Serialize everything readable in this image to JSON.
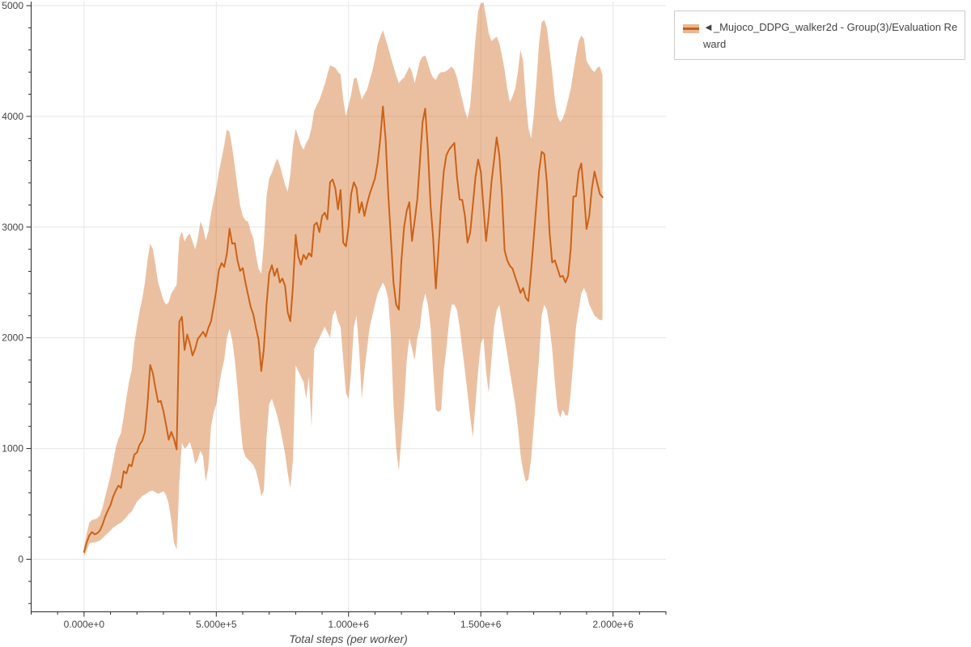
{
  "legend": {
    "label": "◄_Mujoco_DDPG_walker2d - Group(3)/Evaluation Reward"
  },
  "chart_data": {
    "type": "line",
    "title": "",
    "xlabel": "Total steps (per worker)",
    "ylabel": "",
    "grid": true,
    "legend_position": "top-right-outside",
    "xlim": [
      -200000,
      2200000
    ],
    "ylim": [
      -475,
      5000
    ],
    "x_major_ticks": [
      0,
      500000,
      1000000,
      1500000,
      2000000
    ],
    "x_tick_labels": [
      "0.000e+0",
      "5.000e+5",
      "1.000e+6",
      "1.500e+6",
      "2.000e+6"
    ],
    "x_minor_step": 100000,
    "y_major_ticks": [
      0,
      1000,
      2000,
      3000,
      4000,
      5000
    ],
    "y_tick_labels": [
      "0",
      "1000",
      "2000",
      "3000",
      "4000",
      "5000"
    ],
    "y_minor_step": 200,
    "colors": {
      "line": "#cc6216",
      "band": "rgba(205,98,20,0.40)",
      "grid": "#e6e6e6",
      "axis": "#2a2a2a",
      "tick_label": "#444444",
      "axis_title": "#4a4a4a",
      "legend_border": "#cccccc",
      "swatch_band": "rgba(205,98,20,0.45)",
      "swatch_line": "#cb6015"
    },
    "series": [
      {
        "name": "◄_Mujoco_DDPG_walker2d - Group(3)/Evaluation Reward",
        "x_start": 0,
        "x_step": 10000,
        "n_points": 197,
        "mean": [
          65,
          150,
          215,
          245,
          225,
          235,
          260,
          315,
          385,
          440,
          490,
          565,
          620,
          665,
          645,
          795,
          775,
          855,
          840,
          945,
          965,
          1035,
          1070,
          1150,
          1400,
          1755,
          1680,
          1545,
          1420,
          1430,
          1340,
          1215,
          1080,
          1150,
          1085,
          990,
          2145,
          2190,
          1890,
          2030,
          1950,
          1840,
          1900,
          1990,
          2020,
          2055,
          2010,
          2090,
          2150,
          2280,
          2430,
          2615,
          2675,
          2640,
          2760,
          2985,
          2850,
          2855,
          2700,
          2605,
          2630,
          2500,
          2390,
          2280,
          2210,
          2090,
          1980,
          1700,
          1900,
          2300,
          2580,
          2655,
          2560,
          2625,
          2500,
          2535,
          2470,
          2230,
          2150,
          2475,
          2930,
          2735,
          2660,
          2750,
          2710,
          2765,
          2735,
          3020,
          3040,
          2955,
          3100,
          3130,
          3070,
          3405,
          3430,
          3350,
          3160,
          3335,
          2860,
          2825,
          3005,
          3300,
          3405,
          3350,
          3130,
          3225,
          3100,
          3210,
          3300,
          3370,
          3440,
          3580,
          3800,
          4090,
          3800,
          3300,
          2900,
          2500,
          2300,
          2255,
          2700,
          3000,
          3150,
          3225,
          2875,
          3060,
          3250,
          3600,
          3950,
          4070,
          3700,
          3200,
          2900,
          2445,
          2800,
          3200,
          3500,
          3650,
          3700,
          3730,
          3760,
          3450,
          3250,
          3245,
          3100,
          2860,
          2950,
          3200,
          3450,
          3610,
          3500,
          3180,
          2875,
          3100,
          3400,
          3600,
          3810,
          3650,
          3300,
          2790,
          2700,
          2650,
          2625,
          2550,
          2480,
          2405,
          2450,
          2360,
          2332,
          2600,
          2900,
          3200,
          3500,
          3680,
          3660,
          3400,
          2950,
          2680,
          2700,
          2625,
          2550,
          2560,
          2500,
          2560,
          2800,
          3275,
          3280,
          3500,
          3575,
          3300,
          2983,
          3100,
          3350,
          3502,
          3400,
          3300,
          3270
        ],
        "lower": [
          30,
          80,
          140,
          150,
          150,
          160,
          170,
          190,
          215,
          235,
          260,
          285,
          300,
          320,
          330,
          355,
          380,
          410,
          430,
          475,
          520,
          545,
          570,
          585,
          600,
          615,
          620,
          605,
          590,
          600,
          615,
          580,
          500,
          350,
          150,
          85,
          700,
          1050,
          1000,
          1020,
          1060,
          980,
          860,
          900,
          980,
          930,
          700,
          830,
          1200,
          1320,
          1400,
          1550,
          1700,
          1800,
          2000,
          2080,
          1980,
          1800,
          1550,
          1250,
          1000,
          930,
          900,
          880,
          850,
          800,
          700,
          570,
          620,
          1100,
          1400,
          1450,
          1380,
          1300,
          1200,
          1080,
          950,
          780,
          640,
          900,
          1750,
          1700,
          1650,
          1600,
          1450,
          1650,
          1200,
          1900,
          1950,
          2000,
          2050,
          2100,
          2050,
          2000,
          2200,
          2250,
          2150,
          2100,
          1800,
          1500,
          1450,
          1700,
          2100,
          2200,
          1900,
          1450,
          1700,
          1900,
          2100,
          2200,
          2300,
          2400,
          2450,
          2500,
          2450,
          2350,
          2000,
          1400,
          1000,
          800,
          1100,
          1400,
          1800,
          2000,
          1900,
          1800,
          2000,
          2100,
          2300,
          2400,
          2300,
          2100,
          1700,
          1350,
          1330,
          1350,
          1700,
          1900,
          2150,
          2300,
          2300,
          2250,
          2100,
          1900,
          1700,
          1500,
          1280,
          1100,
          1400,
          1700,
          1950,
          2000,
          1700,
          1500,
          1800,
          2100,
          2250,
          2300,
          2150,
          2000,
          1850,
          1700,
          1550,
          1400,
          1200,
          950,
          800,
          700,
          720,
          900,
          1200,
          1500,
          1800,
          2200,
          2300,
          2250,
          2100,
          1900,
          1600,
          1350,
          1280,
          1350,
          1300,
          1300,
          1500,
          1800,
          2100,
          2250,
          2400,
          2450,
          2400,
          2300,
          2250,
          2200,
          2180,
          2160,
          2160
        ],
        "upper": [
          110,
          230,
          330,
          355,
          360,
          370,
          395,
          470,
          565,
          660,
          760,
          880,
          1010,
          1090,
          1140,
          1290,
          1455,
          1600,
          1705,
          1950,
          2105,
          2240,
          2350,
          2500,
          2700,
          2850,
          2800,
          2660,
          2500,
          2420,
          2340,
          2300,
          2320,
          2400,
          2440,
          2480,
          2900,
          2960,
          2870,
          2920,
          2940,
          2870,
          2800,
          2890,
          3050,
          2990,
          2880,
          2960,
          3120,
          3240,
          3350,
          3500,
          3620,
          3740,
          3880,
          3860,
          3720,
          3550,
          3360,
          3200,
          3100,
          3060,
          3050,
          2960,
          2900,
          2750,
          2620,
          2580,
          2860,
          3280,
          3440,
          3490,
          3560,
          3620,
          3560,
          3470,
          3380,
          3320,
          3480,
          3740,
          3890,
          3820,
          3740,
          3700,
          3760,
          3800,
          3900,
          4050,
          4100,
          4150,
          4220,
          4290,
          4380,
          4460,
          4450,
          4440,
          4400,
          4380,
          4150,
          4000,
          4100,
          4200,
          4340,
          4350,
          4250,
          4150,
          4200,
          4240,
          4330,
          4410,
          4520,
          4650,
          4720,
          4780,
          4700,
          4620,
          4530,
          4450,
          4370,
          4300,
          4330,
          4350,
          4400,
          4450,
          4400,
          4300,
          4400,
          4500,
          4540,
          4550,
          4480,
          4400,
          4350,
          4330,
          4380,
          4400,
          4400,
          4410,
          4430,
          4450,
          4420,
          4350,
          4250,
          4150,
          4050,
          3980,
          4100,
          4400,
          4700,
          4950,
          5020,
          5030,
          4900,
          4750,
          4680,
          4700,
          4720,
          4660,
          4550,
          4420,
          4250,
          4130,
          4180,
          4250,
          4400,
          4600,
          4500,
          4150,
          3900,
          3800,
          4000,
          4300,
          4650,
          4850,
          4870,
          4800,
          4600,
          4400,
          4150,
          4000,
          3950,
          3980,
          4050,
          4150,
          4250,
          4400,
          4550,
          4680,
          4730,
          4700,
          4500,
          4460,
          4420,
          4400,
          4440,
          4450,
          4370
        ]
      }
    ]
  }
}
